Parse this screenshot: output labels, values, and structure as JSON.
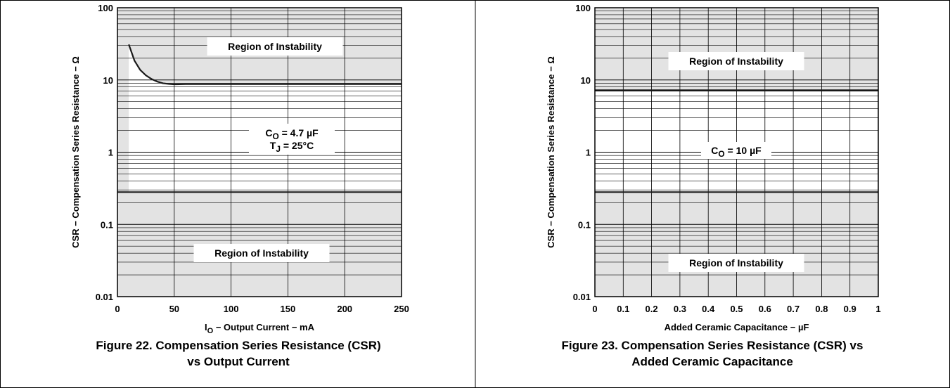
{
  "chart_data": [
    {
      "type": "line",
      "figure_caption": [
        "Figure 22. Compensation Series Resistance (CSR)",
        "vs Output Current"
      ],
      "xlabel": {
        "base": "I",
        "sub": "O",
        "rest": " − Output Current − mA"
      },
      "ylabel": "CSR − Compensation Series Resistance − Ω",
      "x_scale": "linear",
      "y_scale": "log",
      "xlim": [
        0,
        250
      ],
      "ylim": [
        0.01,
        100
      ],
      "x_ticks": [
        0,
        50,
        100,
        150,
        200,
        250
      ],
      "x_tick_labels": [
        "0",
        "50",
        "100",
        "150",
        "200",
        "250"
      ],
      "y_ticks": [
        0.01,
        0.1,
        1,
        10,
        100
      ],
      "y_tick_labels": [
        "0.01",
        "0.1",
        "1",
        "10",
        "100"
      ],
      "grid": true,
      "region_label": "Region of Instability",
      "annotation_lines": [
        {
          "base": "C",
          "sub": "O",
          "rest": " = 4.7 µF"
        },
        {
          "base": "T",
          "sub": "J",
          "rest": " = 25°C"
        }
      ],
      "series": [
        {
          "role": "upper_boundary",
          "points": [
            [
              10,
              31
            ],
            [
              15,
              18.5
            ],
            [
              20,
              13.8
            ],
            [
              25,
              11.6
            ],
            [
              30,
              10.3
            ],
            [
              35,
              9.5
            ],
            [
              40,
              9.0
            ],
            [
              45,
              8.8
            ],
            [
              50,
              8.7
            ],
            [
              60,
              8.75
            ],
            [
              100,
              8.75
            ],
            [
              150,
              8.75
            ],
            [
              200,
              8.75
            ],
            [
              250,
              8.75
            ]
          ]
        },
        {
          "role": "lower_boundary",
          "points": [
            [
              0,
              0.28
            ],
            [
              250,
              0.28
            ]
          ]
        }
      ],
      "colors": {
        "instability_fill": "#e3e3e3",
        "stable_fill": "#ffffff",
        "line": "#1a1a1a"
      }
    },
    {
      "type": "line",
      "figure_caption": [
        "Figure 23. Compensation Series Resistance (CSR) vs",
        "Added Ceramic Capacitance"
      ],
      "xlabel": {
        "base": "Added Ceramic Capacitance − µF",
        "sub": "",
        "rest": ""
      },
      "ylabel": "CSR − Compensation Series Resistance − Ω",
      "x_scale": "linear",
      "y_scale": "log",
      "xlim": [
        0,
        1
      ],
      "ylim": [
        0.01,
        100
      ],
      "x_ticks": [
        0,
        0.1,
        0.2,
        0.3,
        0.4,
        0.5,
        0.6,
        0.7,
        0.8,
        0.9,
        1
      ],
      "x_tick_labels": [
        "0",
        "0.1",
        "0.2",
        "0.3",
        "0.4",
        "0.5",
        "0.6",
        "0.7",
        "0.8",
        "0.9",
        "1"
      ],
      "y_ticks": [
        0.01,
        0.1,
        1,
        10,
        100
      ],
      "y_tick_labels": [
        "0.01",
        "0.1",
        "1",
        "10",
        "100"
      ],
      "grid": true,
      "region_label": "Region of Instability",
      "annotation_lines": [
        {
          "base": "C",
          "sub": "O",
          "rest": " = 10 µF"
        }
      ],
      "series": [
        {
          "role": "upper_boundary",
          "points": [
            [
              0,
              7.2
            ],
            [
              1,
              7.2
            ]
          ]
        },
        {
          "role": "lower_boundary",
          "points": [
            [
              0,
              0.28
            ],
            [
              1,
              0.28
            ]
          ]
        }
      ],
      "colors": {
        "instability_fill": "#e3e3e3",
        "stable_fill": "#ffffff",
        "line": "#1a1a1a"
      }
    }
  ]
}
